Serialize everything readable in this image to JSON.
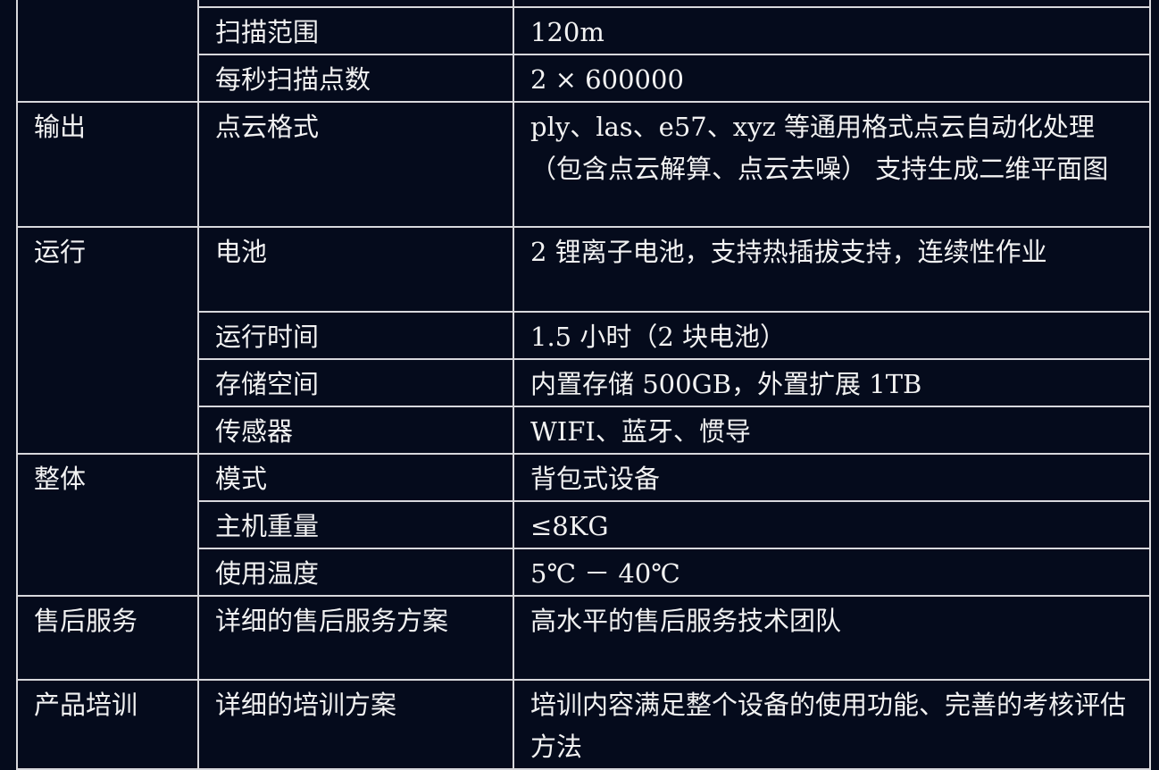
{
  "rows": [
    {
      "param": "扫描范围",
      "value": "120m"
    },
    {
      "param": "每秒扫描点数",
      "value": "2 × 600000"
    },
    {
      "category": "输出",
      "param": "点云格式",
      "value": "ply、las、e57、xyz 等通用格式点云自动化处理（包含点云解算、点云去噪） 支持生成二维平面图"
    },
    {
      "category": "运行",
      "param": "电池",
      "value": "2 锂离子电池，支持热插拔支持，连续性作业"
    },
    {
      "param": "运行时间",
      "value": "1.5 小时（2 块电池）"
    },
    {
      "param": "存储空间",
      "value": "内置存储 500GB，外置扩展 1TB"
    },
    {
      "param": "传感器",
      "value": "WIFI、蓝牙、惯导"
    },
    {
      "category": "整体",
      "param": "模式",
      "value": "背包式设备"
    },
    {
      "param": "主机重量",
      "value": "≤8KG"
    },
    {
      "param": "使用温度",
      "value": "5℃ － 40℃"
    },
    {
      "category": "售后服务",
      "param": "详细的售后服务方案",
      "value": "高水平的售后服务技术团队"
    },
    {
      "category": "产品培训",
      "param": "详细的培训方案",
      "value": "培训内容满足整个设备的使用功能、完善的考核评估方法"
    }
  ]
}
